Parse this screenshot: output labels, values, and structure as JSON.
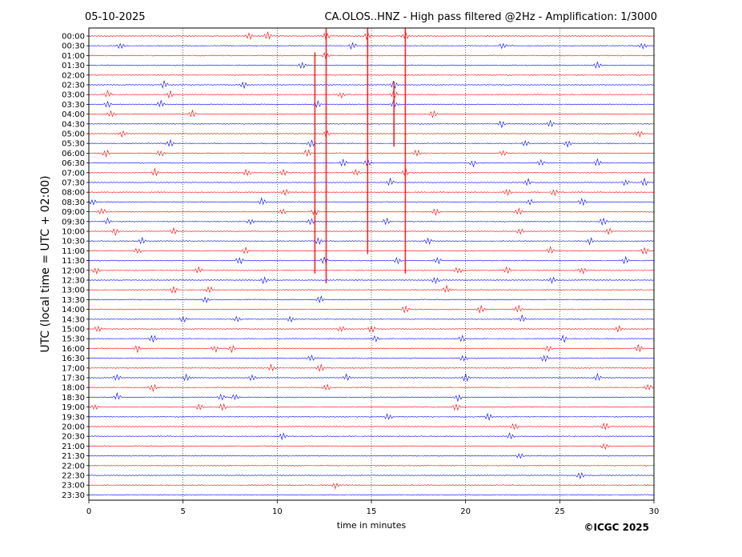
{
  "header": {
    "date": "05-10-2025",
    "title": "CA.OLOS..HNZ - High pass filtered @2Hz - Amplification: 1/3000"
  },
  "credit": "©ICGC 2025",
  "chart_data": {
    "type": "helicorder",
    "xlabel": "time in minutes",
    "ylabel": "UTC (local time = UTC + 02:00)",
    "xlim": [
      0,
      30
    ],
    "x_ticks": [
      0,
      5,
      10,
      15,
      20,
      25,
      30
    ],
    "x_tick_labels": [
      "0",
      "5",
      "10",
      "15",
      "20",
      "25",
      "30"
    ],
    "vertical_grid_minutes": [
      5,
      10,
      15,
      20,
      25
    ],
    "grid": "dotted vertical lines at 5-minute intervals",
    "row_labels": [
      "00:00",
      "00:30",
      "01:00",
      "01:30",
      "02:00",
      "02:30",
      "03:00",
      "03:30",
      "04:00",
      "04:30",
      "05:00",
      "05:30",
      "06:00",
      "06:30",
      "07:00",
      "07:30",
      "08:00",
      "08:30",
      "09:00",
      "09:30",
      "10:00",
      "10:30",
      "11:00",
      "11:30",
      "12:00",
      "12:30",
      "13:00",
      "13:30",
      "14:00",
      "14:30",
      "15:00",
      "15:30",
      "16:00",
      "16:30",
      "17:00",
      "17:30",
      "18:00",
      "18:30",
      "19:00",
      "19:30",
      "20:00",
      "20:30",
      "21:00",
      "21:30",
      "22:00",
      "22:30",
      "23:00",
      "23:30"
    ],
    "series_colors": [
      "#ff0000",
      "#0000ff"
    ],
    "color_pattern": "alternating red/blue per row, starting red at 00:00",
    "large_events": [
      {
        "minute": 12.0,
        "rows_from": "01:00",
        "rows_to": "12:00"
      },
      {
        "minute": 12.6,
        "rows_from": "00:00",
        "rows_to": "12:30"
      },
      {
        "minute": 14.8,
        "rows_from": "00:00",
        "rows_to": "11:00"
      },
      {
        "minute": 16.2,
        "rows_from": "02:30",
        "rows_to": "05:30"
      },
      {
        "minute": 16.8,
        "rows_from": "00:00",
        "rows_to": "12:00"
      }
    ],
    "bursts": [
      [
        8.5,
        9.5,
        12.6,
        14.8,
        16.8
      ],
      [
        1.7,
        14.0,
        22.0,
        29.4
      ],
      [
        12.6
      ],
      [
        11.3,
        27.0
      ],
      [],
      [
        8.2,
        4.0,
        16.2
      ],
      [
        1.0,
        13.4,
        4.3,
        16.2
      ],
      [
        1.0,
        3.8,
        12.1,
        16.2
      ],
      [
        18.3,
        1.2,
        5.5
      ],
      [
        21.9,
        24.5
      ],
      [
        12.6,
        1.8,
        29.2
      ],
      [
        4.3,
        11.8,
        23.2,
        25.4
      ],
      [
        0.9,
        11.6,
        17.4,
        22.0,
        3.8
      ],
      [
        13.5,
        14.8,
        20.4,
        24.0,
        27.0
      ],
      [
        3.5,
        10.3,
        14.2,
        16.8,
        8.4
      ],
      [
        16.0,
        23.3,
        28.5,
        29.5
      ],
      [
        10.4,
        22.2,
        24.7
      ],
      [
        0.2,
        9.2,
        26.2,
        23.4
      ],
      [
        0.7,
        10.3,
        12.0,
        18.4,
        22.8
      ],
      [
        1.0,
        8.6,
        11.8,
        15.8,
        27.3
      ],
      [
        1.4,
        4.5,
        22.9,
        27.6
      ],
      [
        2.8,
        12.2,
        18.0,
        26.6
      ],
      [
        2.6,
        8.3,
        24.5,
        29.5
      ],
      [
        8.0,
        12.5,
        16.4,
        18.5,
        28.5
      ],
      [
        0.4,
        5.8,
        19.6,
        22.2,
        26.2
      ],
      [
        9.3,
        18.4,
        24.6
      ],
      [
        4.5,
        6.4,
        19.0
      ],
      [
        6.2,
        12.3
      ],
      [
        16.8,
        20.8,
        22.8
      ],
      [
        5.0,
        7.9,
        10.7,
        23.0
      ],
      [
        0.5,
        13.4,
        15.0,
        28.1
      ],
      [
        3.4,
        15.2,
        19.8,
        25.2
      ],
      [
        2.6,
        6.7,
        7.6,
        24.4,
        29.2
      ],
      [
        11.8,
        19.9,
        24.2
      ],
      [
        9.7,
        12.3
      ],
      [
        1.5,
        5.2,
        8.7,
        13.7,
        20.0,
        27.0
      ],
      [
        3.4,
        12.6,
        29.7
      ],
      [
        1.5,
        7.0,
        7.8,
        19.6
      ],
      [
        0.3,
        5.9,
        7.1,
        19.5
      ],
      [
        15.9,
        21.2
      ],
      [
        22.6,
        27.4
      ],
      [
        10.3,
        22.4
      ],
      [
        27.4
      ],
      [
        22.9
      ],
      [],
      [
        26.1
      ],
      [
        13.1
      ],
      []
    ]
  }
}
